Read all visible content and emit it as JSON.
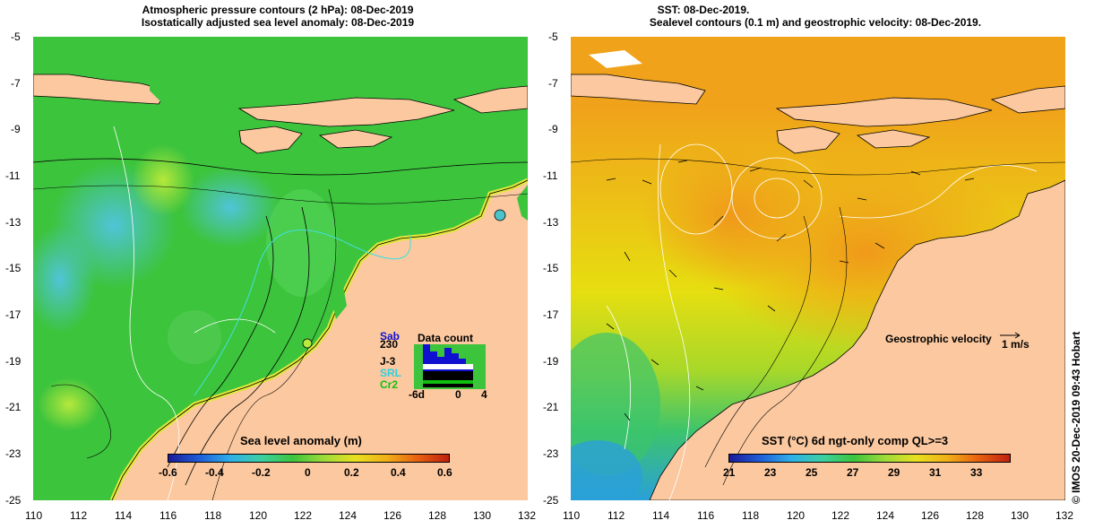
{
  "left_panel": {
    "title_line1": "Atmospheric pressure contours (2 hPa): 08-Dec-2019",
    "title_line2": "Isostatically adjusted sea level anomaly: 08-Dec-2019",
    "colorbar_label": "Sea level anomaly (m)",
    "colorbar_ticks": [
      "-0.6",
      "-0.4",
      "-0.2",
      "0",
      "0.2",
      "0.4",
      "0.6"
    ],
    "data_count": {
      "title": "Data count",
      "sat_labels": [
        {
          "text": "Sab",
          "color": "#1010d0"
        },
        {
          "text": "230",
          "color": "#000000"
        },
        {
          "text": "J-3",
          "color": "#000000"
        },
        {
          "text": "SRL",
          "color": "#30d0e0"
        },
        {
          "text": "Cr2",
          "color": "#10c010"
        }
      ],
      "x_ticks": [
        "-6d",
        "0",
        "4"
      ]
    }
  },
  "right_panel": {
    "title_line1": "SST: 08-Dec-2019.",
    "title_line2": "Sealevel contours (0.1 m) and geostrophic velocity: 08-Dec-2019.",
    "colorbar_label": "SST (°C) 6d ngt-only comp QL>=3",
    "colorbar_ticks": [
      "21",
      "23",
      "25",
      "27",
      "29",
      "31",
      "33"
    ],
    "velocity_legend": "Geostrophic velocity",
    "velocity_unit": "1 m/s"
  },
  "axes": {
    "y_ticks": [
      "-5",
      "-7",
      "-9",
      "-11",
      "-13",
      "-15",
      "-17",
      "-19",
      "-21",
      "-23",
      "-25"
    ],
    "x_ticks": [
      "110",
      "112",
      "114",
      "116",
      "118",
      "120",
      "122",
      "124",
      "126",
      "128",
      "130",
      "132"
    ]
  },
  "credit": "© IMOS 20-Dec-2019 09:43 Hobart",
  "colors": {
    "land": "#fbc89f",
    "sea_green": "#3dc43d",
    "sst_orange": "#f0a21a",
    "sst_yellow": "#e6de10"
  }
}
